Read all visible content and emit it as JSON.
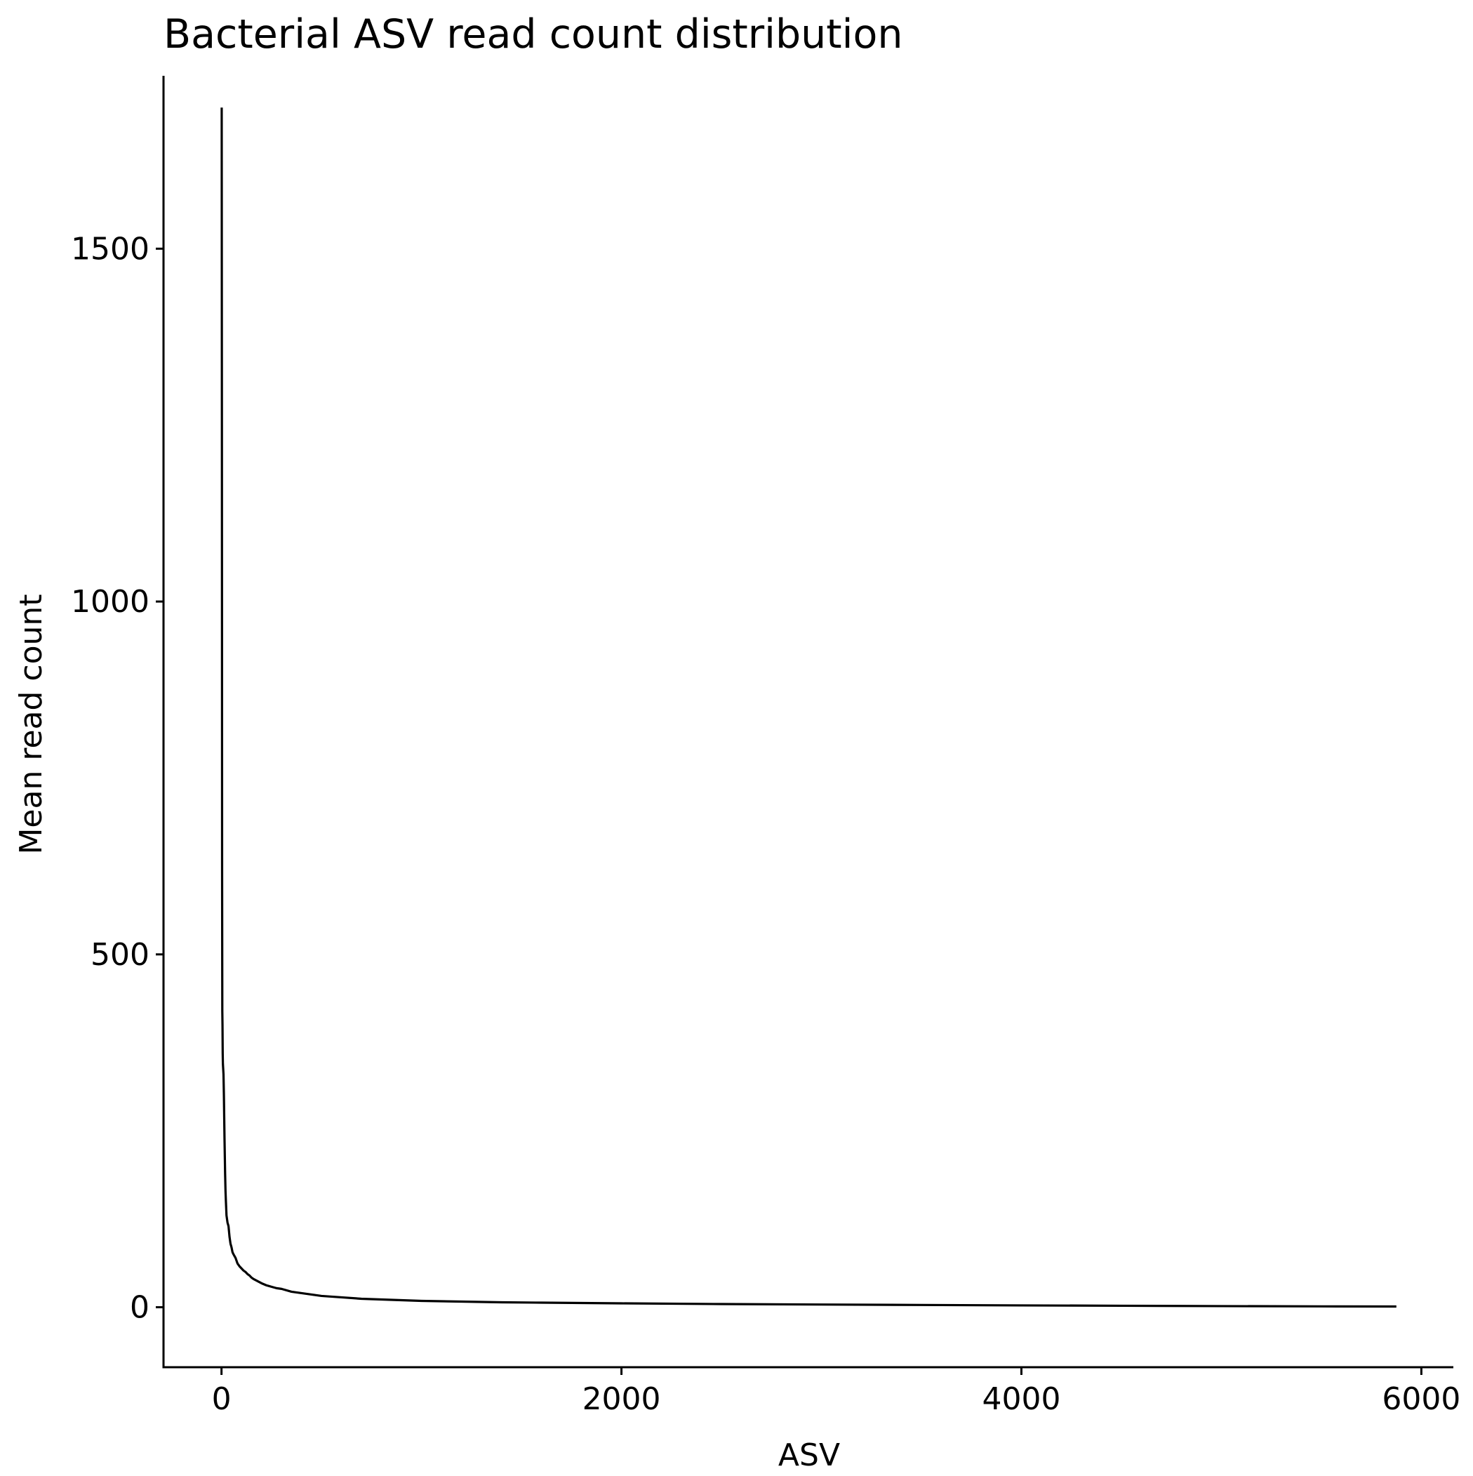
{
  "chart_data": {
    "type": "line",
    "title": "Bacterial ASV read count distribution",
    "xlabel": "ASV",
    "ylabel": "Mean read count",
    "xlim": [
      -290,
      6160
    ],
    "ylim": [
      -85,
      1745
    ],
    "x_ticks": [
      0,
      2000,
      4000,
      6000
    ],
    "y_ticks": [
      0,
      500,
      1000,
      1500
    ],
    "grid": false,
    "legend": "none",
    "line_color": "#000000",
    "series": [
      {
        "name": "Mean read count",
        "x": [
          1,
          2,
          3,
          4,
          5,
          6,
          7,
          8,
          10,
          12,
          15,
          18,
          20,
          22,
          25,
          30,
          35,
          40,
          45,
          50,
          55,
          60,
          70,
          80,
          90,
          100,
          110,
          120,
          130,
          140,
          150,
          160,
          180,
          200,
          225,
          250,
          275,
          300,
          350,
          400,
          450,
          500,
          600,
          700,
          800,
          900,
          1000,
          1200,
          1400,
          1600,
          1800,
          2000,
          2500,
          3000,
          3500,
          4000,
          4500,
          5000,
          5500,
          5875
        ],
        "y": [
          1700,
          1250,
          620,
          420,
          400,
          360,
          345,
          340,
          330,
          300,
          240,
          190,
          165,
          150,
          130,
          120,
          115,
          100,
          90,
          85,
          78,
          75,
          70,
          62,
          58,
          55,
          52,
          50,
          47,
          45,
          42,
          40,
          37,
          34,
          31,
          29,
          27,
          26,
          22,
          20,
          18,
          16,
          14,
          12,
          11,
          10,
          9,
          8,
          7,
          6.5,
          6,
          5.5,
          4.5,
          3.8,
          3.2,
          2.6,
          2.1,
          1.6,
          1.2,
          1
        ]
      }
    ]
  }
}
